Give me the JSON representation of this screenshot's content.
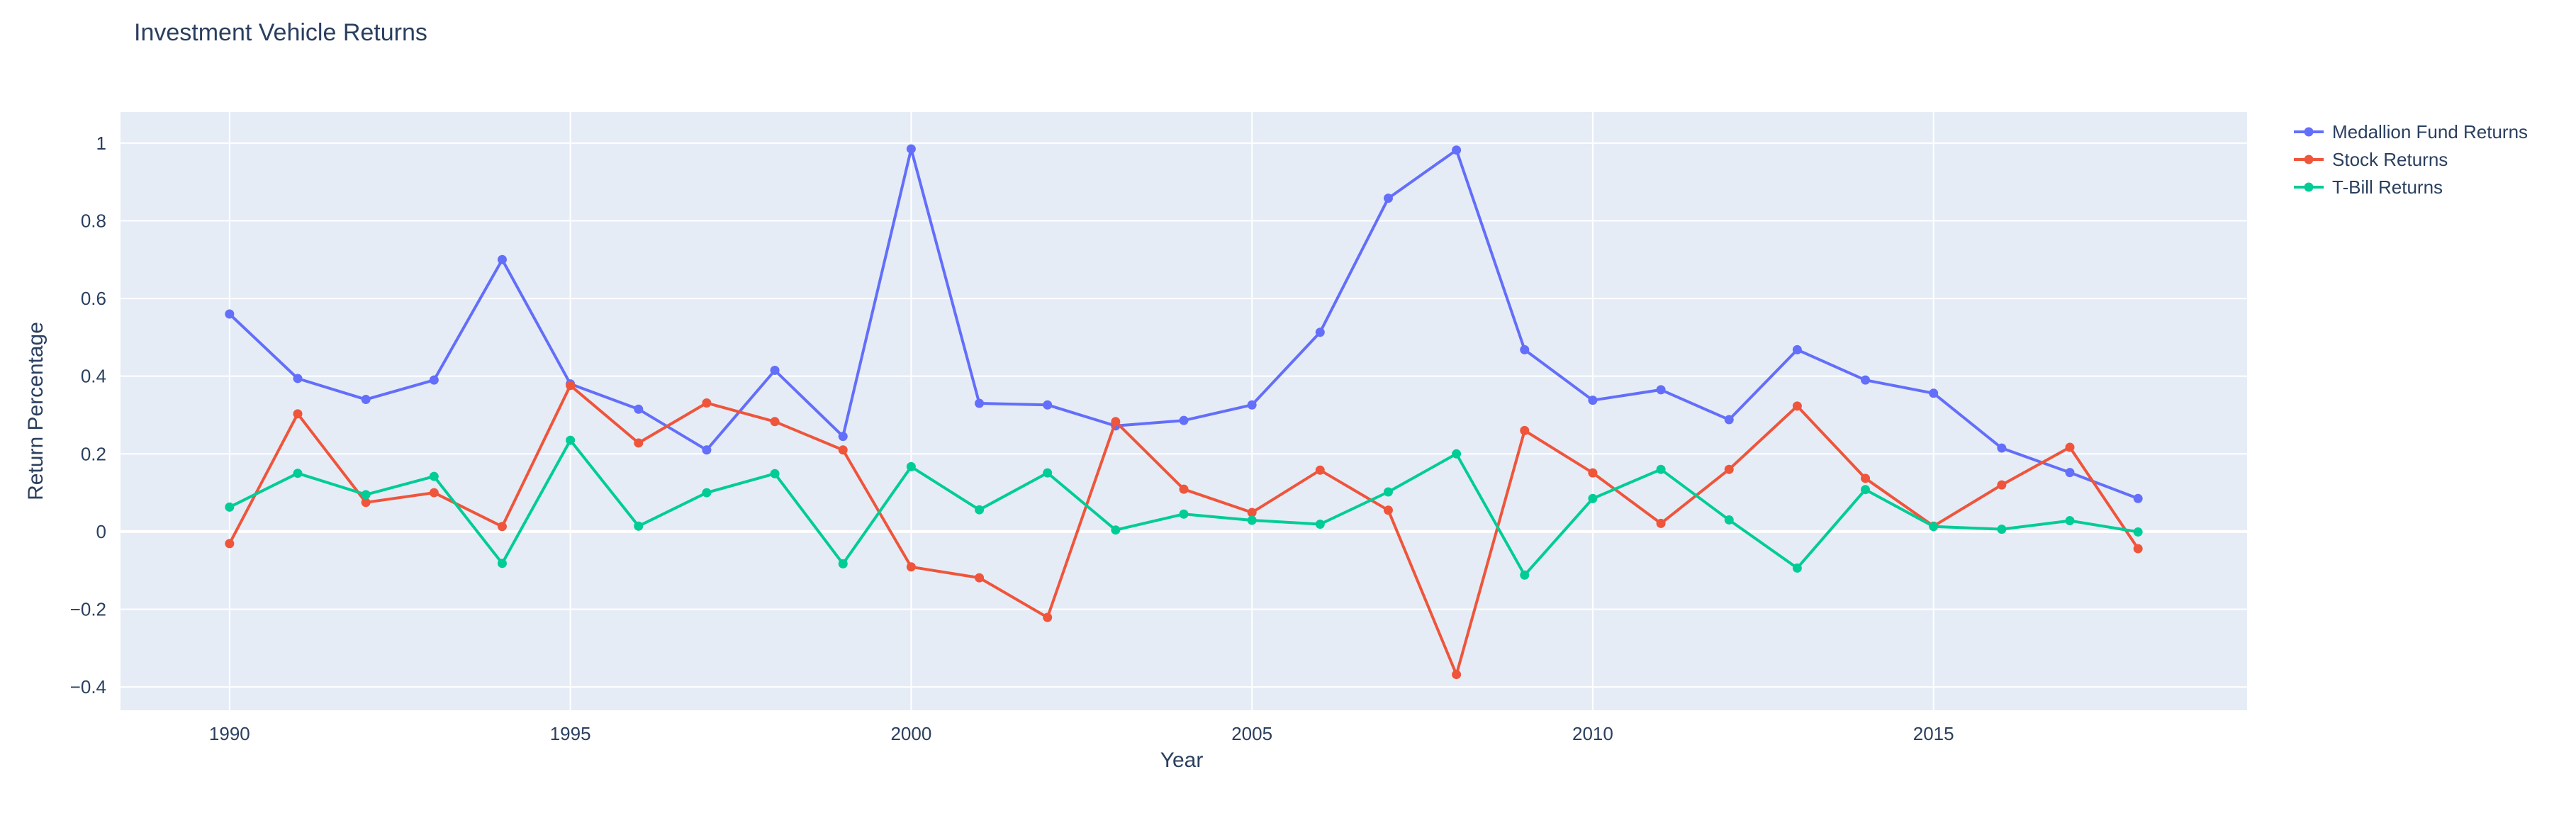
{
  "chart_data": {
    "type": "line",
    "title": "Investment Vehicle Returns",
    "xlabel": "Year",
    "ylabel": "Return Percentage",
    "xlim": [
      1988.4,
      2019.6
    ],
    "ylim": [
      -0.46,
      1.08
    ],
    "xticks": [
      1990,
      1995,
      2000,
      2005,
      2010,
      2015
    ],
    "yticks": [
      -0.4,
      -0.2,
      0,
      0.2,
      0.4,
      0.6,
      0.8,
      1
    ],
    "ytick_labels": [
      "−0.4",
      "−0.2",
      "0",
      "0.2",
      "0.4",
      "0.6",
      "0.8",
      "1"
    ],
    "grid": true,
    "legend_position": "top-right",
    "background_color": "#e5ecf6",
    "x": [
      1990,
      1991,
      1992,
      1993,
      1994,
      1995,
      1996,
      1997,
      1998,
      1999,
      2000,
      2001,
      2002,
      2003,
      2004,
      2005,
      2006,
      2007,
      2008,
      2009,
      2010,
      2011,
      2012,
      2013,
      2014,
      2015,
      2016,
      2017,
      2018
    ],
    "series": [
      {
        "name": "Medallion Fund Returns",
        "color": "#636efa",
        "values": [
          0.56,
          0.394,
          0.34,
          0.39,
          0.7,
          0.38,
          0.315,
          0.21,
          0.415,
          0.245,
          0.985,
          0.33,
          0.326,
          0.272,
          0.286,
          0.326,
          0.513,
          0.858,
          0.982,
          0.468,
          0.338,
          0.365,
          0.288,
          0.468,
          0.39,
          0.356,
          0.215,
          0.152,
          0.085
        ]
      },
      {
        "name": "Stock Returns",
        "color": "#ef553b",
        "values": [
          -0.031,
          0.303,
          0.075,
          0.1,
          0.013,
          0.376,
          0.228,
          0.331,
          0.283,
          0.21,
          -0.091,
          -0.119,
          -0.221,
          0.283,
          0.109,
          0.049,
          0.158,
          0.055,
          -0.368,
          0.26,
          0.151,
          0.021,
          0.16,
          0.323,
          0.137,
          0.014,
          0.12,
          0.217,
          -0.044
        ]
      },
      {
        "name": "T-Bill Returns",
        "color": "#00cc96",
        "values": [
          0.063,
          0.15,
          0.095,
          0.142,
          -0.082,
          0.235,
          0.014,
          0.1,
          0.149,
          -0.083,
          0.167,
          0.056,
          0.151,
          0.004,
          0.045,
          0.029,
          0.019,
          0.102,
          0.2,
          -0.112,
          0.085,
          0.16,
          0.03,
          -0.094,
          0.108,
          0.013,
          0.006,
          0.028,
          -0.001
        ]
      }
    ]
  }
}
